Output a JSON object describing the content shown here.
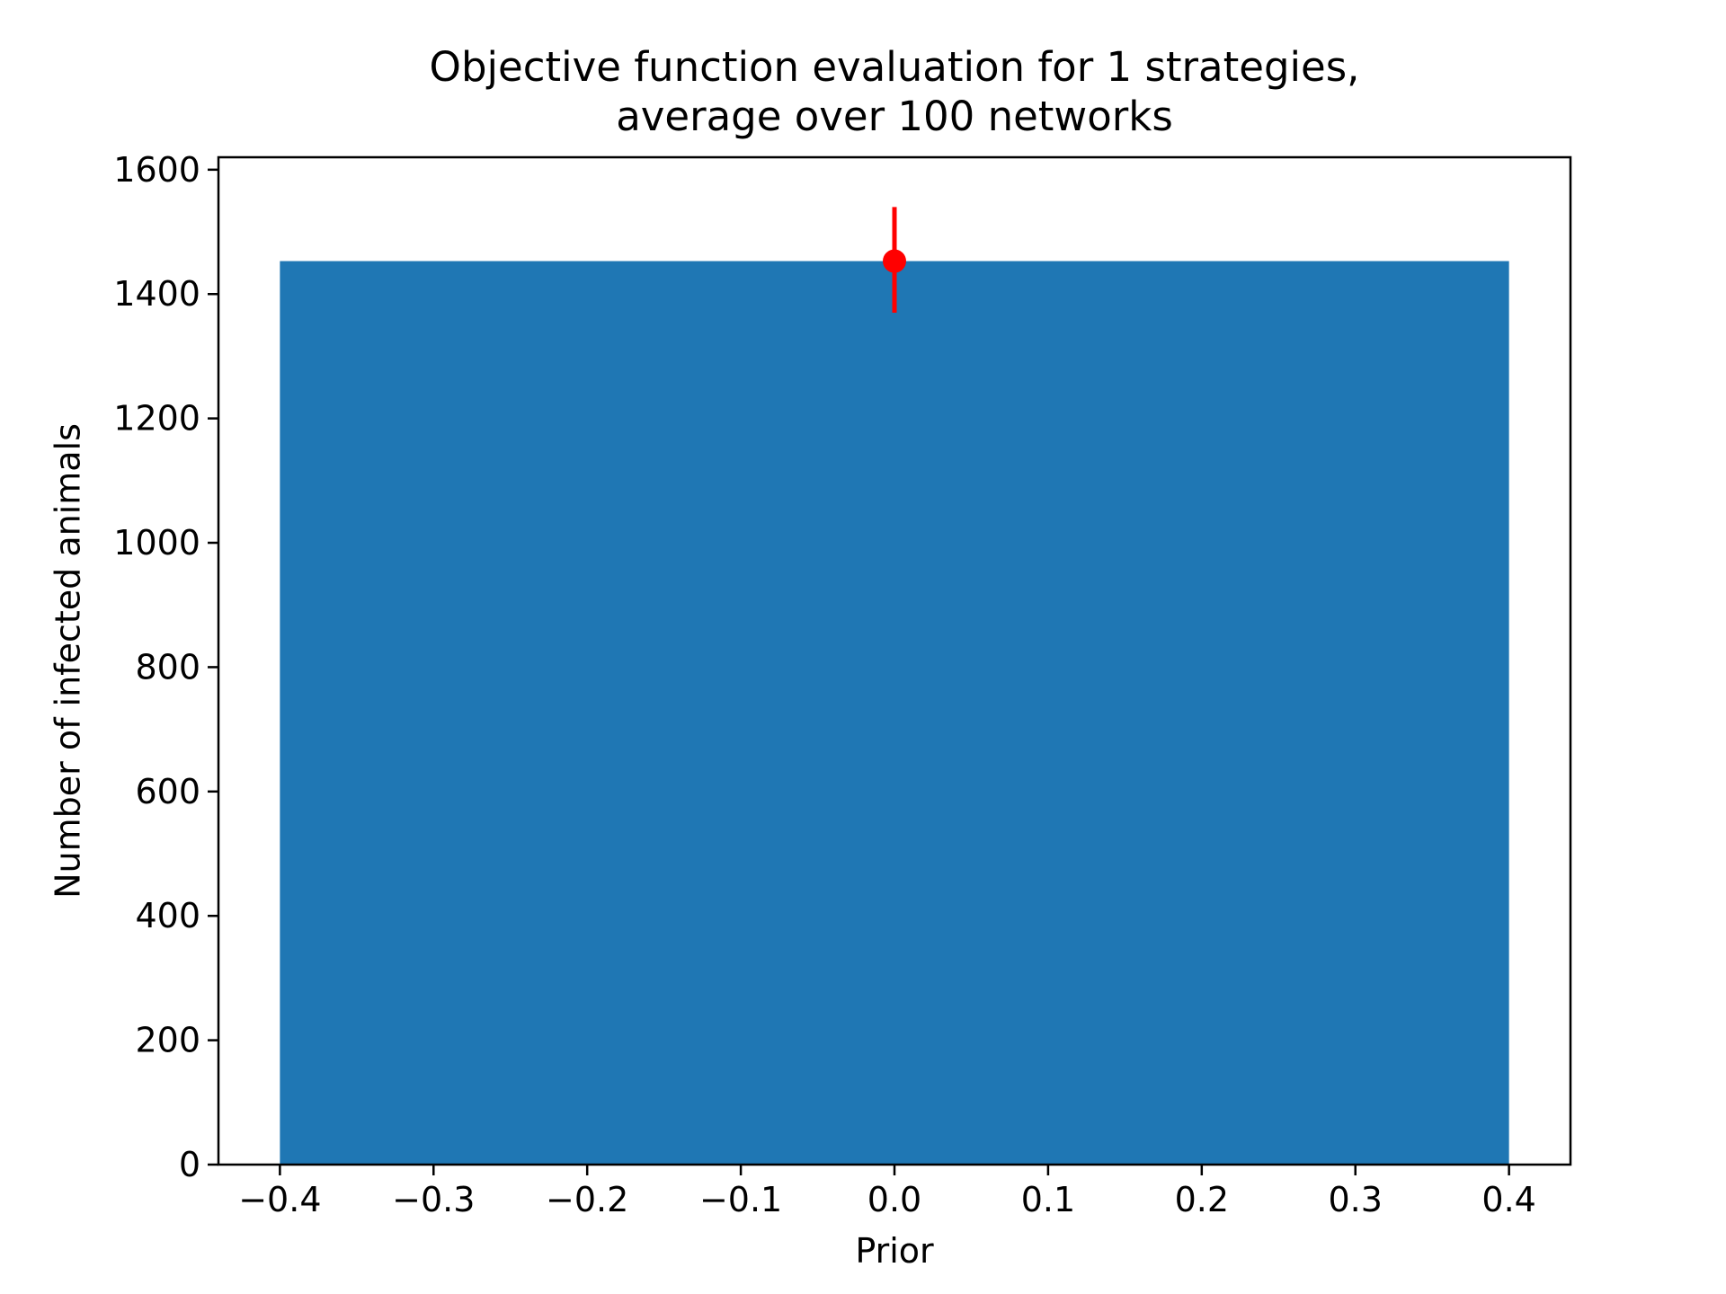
{
  "chart_data": {
    "type": "bar",
    "title": "Objective function evaluation for 1 strategies,\naverage over 100 networks",
    "xlabel": "Prior",
    "ylabel": "Number of infected animals",
    "xlim": [
      -0.44,
      0.44
    ],
    "ylim": [
      0,
      1620
    ],
    "x_ticks": [
      -0.4,
      -0.3,
      -0.2,
      -0.1,
      0.0,
      0.1,
      0.2,
      0.3,
      0.4
    ],
    "x_tick_labels": [
      "−0.4",
      "−0.3",
      "−0.2",
      "−0.1",
      "0.0",
      "0.1",
      "0.2",
      "0.3",
      "0.4"
    ],
    "y_ticks": [
      0,
      200,
      400,
      600,
      800,
      1000,
      1200,
      1400,
      1600
    ],
    "y_tick_labels": [
      "0",
      "200",
      "400",
      "600",
      "800",
      "1000",
      "1200",
      "1400",
      "1600"
    ],
    "bars": [
      {
        "x": 0.0,
        "width": 0.8,
        "value": 1453,
        "color": "#1f77b4"
      }
    ],
    "error_bars": [
      {
        "x": 0.0,
        "y": 1453,
        "lower": 1370,
        "upper": 1540,
        "color": "#ff0000"
      }
    ],
    "grid": false,
    "legend": false
  }
}
